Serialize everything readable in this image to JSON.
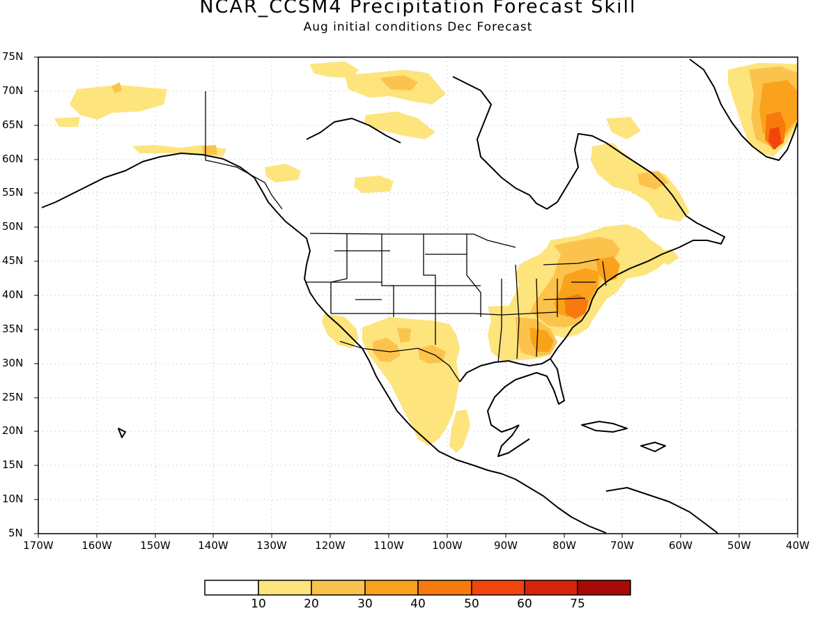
{
  "header": {
    "title": "NCAR_CCSM4 Precipitation Forecast Skill",
    "subtitle": "Aug initial conditions  Dec Forecast"
  },
  "axes": {
    "lat_labels": [
      "75N",
      "70N",
      "65N",
      "60N",
      "55N",
      "50N",
      "45N",
      "40N",
      "35N",
      "30N",
      "25N",
      "20N",
      "15N",
      "10N",
      "5N"
    ],
    "lon_labels": [
      "170W",
      "160W",
      "150W",
      "140W",
      "130W",
      "120W",
      "110W",
      "100W",
      "90W",
      "80W",
      "70W",
      "60W",
      "50W",
      "40W"
    ],
    "lat_range": [
      5,
      75
    ],
    "lon_range": [
      -170,
      -40
    ],
    "grid": "dotted"
  },
  "colorbar": {
    "labels": [
      "10",
      "20",
      "30",
      "40",
      "50",
      "60",
      "75"
    ],
    "colors": [
      "#ffffff",
      "#fde47d",
      "#fcc34c",
      "#fba21c",
      "#f87a0c",
      "#f2450c",
      "#d8220c",
      "#a80a05"
    ]
  }
}
